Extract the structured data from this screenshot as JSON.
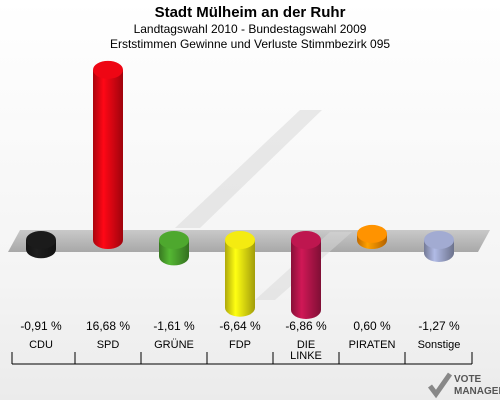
{
  "title": "Stadt Mülheim an der Ruhr",
  "subtitle1": "Landtagswahl 2010 - Bundestagswahl 2009",
  "subtitle2": "Erststimmen Gewinne und Verluste Stimmbezirk 095",
  "chart_data": {
    "type": "bar",
    "categories": [
      "CDU",
      "SPD",
      "GRÜNE",
      "FDP",
      "DIE LINKE",
      "PIRATEN",
      "Sonstige"
    ],
    "values": [
      -0.91,
      16.68,
      -1.61,
      -6.64,
      -6.86,
      0.6,
      -1.27
    ],
    "value_labels": [
      "-0,91 %",
      "16,68 %",
      "-1,61 %",
      "-6,64 %",
      "-6,86 %",
      "0,60 %",
      "-1,27 %"
    ],
    "colors": [
      "#1a1a1a",
      "#e30613",
      "#4aa02c",
      "#e8e010",
      "#b5154b",
      "#ff8c00",
      "#9aa3c8"
    ],
    "ylim": [
      -8,
      18
    ]
  },
  "logo": {
    "line1": "VOTE",
    "line2": "MANAGER"
  }
}
